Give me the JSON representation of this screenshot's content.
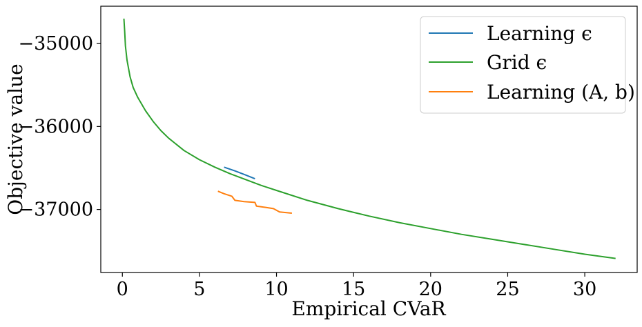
{
  "chart_data": {
    "type": "line",
    "title": "",
    "xlabel": "Empirical CVaR",
    "ylabel": "Objective value",
    "xlim": [
      -1.4,
      33.4
    ],
    "ylim": [
      -37760,
      -34550
    ],
    "x_ticks": [
      0,
      5,
      10,
      15,
      20,
      25,
      30
    ],
    "x_tick_labels": [
      "0",
      "5",
      "10",
      "15",
      "20",
      "25",
      "30"
    ],
    "y_ticks": [
      -35000,
      -36000,
      -37000
    ],
    "y_tick_labels": [
      "−35000",
      "−36000",
      "−37000"
    ],
    "grid": false,
    "legend_position": "top-right",
    "series": [
      {
        "name": "Learning ϵ",
        "color": "#1f77b4",
        "x": [
          6.6,
          7.3,
          8.0,
          8.6
        ],
        "y": [
          -36490,
          -36535,
          -36585,
          -36630
        ]
      },
      {
        "name": "Grid ϵ",
        "color": "#2ca02c",
        "x": [
          0.1,
          0.15,
          0.2,
          0.3,
          0.5,
          0.7,
          1.0,
          1.5,
          2.0,
          2.5,
          3.0,
          4.0,
          5.0,
          6.0,
          7.0,
          8.0,
          9.0,
          10.0,
          12.0,
          14.0,
          16.0,
          18.0,
          20.0,
          22.0,
          24.0,
          26.0,
          28.0,
          30.0,
          32.0
        ],
        "y": [
          -34700,
          -34850,
          -35030,
          -35200,
          -35400,
          -35530,
          -35650,
          -35810,
          -35940,
          -36050,
          -36140,
          -36290,
          -36400,
          -36490,
          -36570,
          -36640,
          -36710,
          -36770,
          -36890,
          -36990,
          -37080,
          -37160,
          -37230,
          -37300,
          -37360,
          -37420,
          -37480,
          -37540,
          -37590
        ]
      },
      {
        "name": "Learning (A, b)",
        "color": "#ff7f0e",
        "x": [
          6.2,
          6.6,
          7.1,
          7.3,
          7.9,
          8.6,
          8.7,
          9.3,
          9.8,
          10.2,
          11.0
        ],
        "y": [
          -36780,
          -36810,
          -36840,
          -36890,
          -36905,
          -36915,
          -36960,
          -36975,
          -36990,
          -37030,
          -37045
        ]
      }
    ]
  }
}
